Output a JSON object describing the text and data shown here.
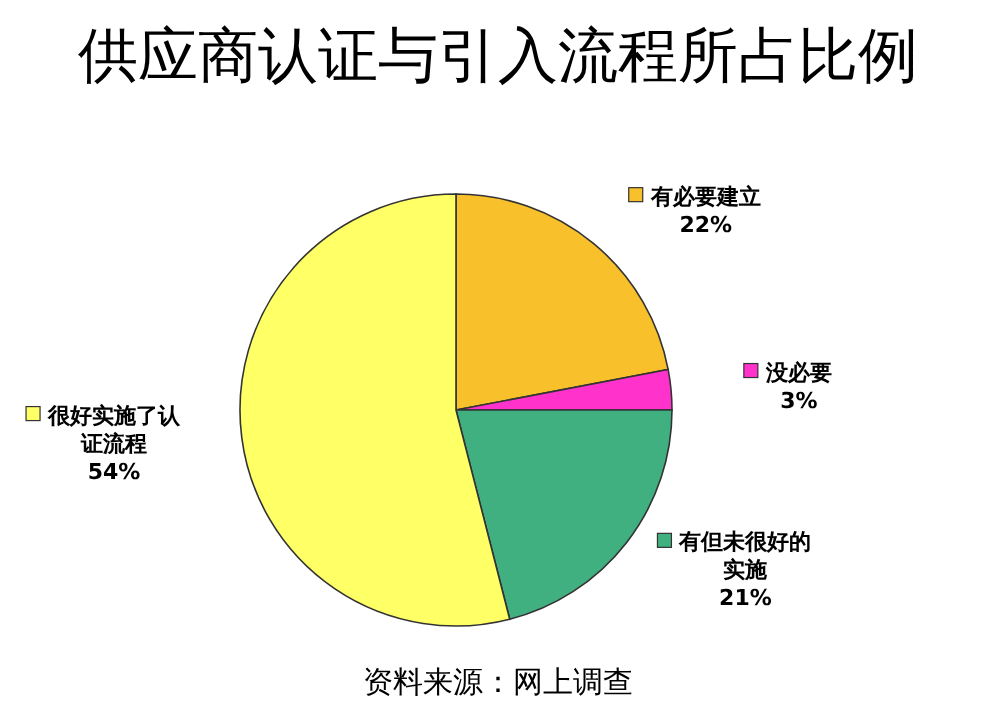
{
  "chart_data": {
    "type": "pie",
    "title": "供应商认证与引入流程所占比例",
    "categories": [
      "有必要建立",
      "没必要",
      "有但未很好的实施",
      "很好实施了认证流程"
    ],
    "values": [
      22,
      3,
      21,
      54
    ],
    "colors": [
      "#f8c02a",
      "#ff33cc",
      "#40b080",
      "#ffff66"
    ],
    "value_labels": [
      "22%",
      "3%",
      "21%",
      "54%"
    ],
    "legend": "top left",
    "annotations": [
      "资料来源：网上调查"
    ]
  }
}
